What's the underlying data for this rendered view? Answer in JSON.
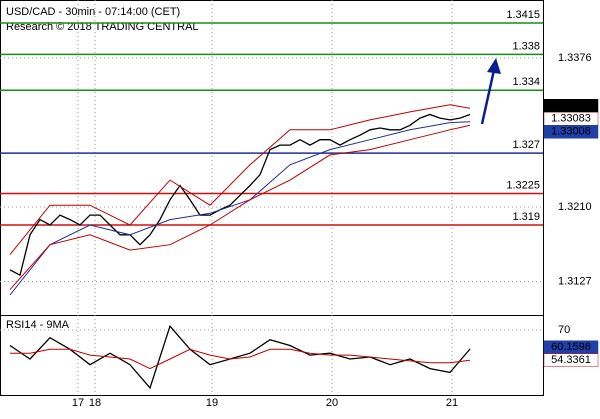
{
  "chart_data": [
    {
      "type": "line",
      "title": "USD/CAD - 30min - 07:14:00 (CET)",
      "subtitle": "Research © 2018 TRADING CENTRAL",
      "x": [
        0,
        1,
        2,
        3,
        4,
        5,
        6,
        7,
        8,
        9,
        10,
        11,
        12,
        13,
        14,
        15,
        16,
        17,
        18,
        19,
        20,
        21,
        22,
        23,
        24,
        25,
        26,
        27,
        28,
        29,
        30,
        31,
        32,
        33,
        34,
        35,
        36,
        37,
        38,
        39,
        40,
        41,
        42,
        43,
        44,
        45,
        46
      ],
      "xlim": [
        -1,
        53.3
      ],
      "ylim": [
        1.30897,
        1.34406
      ],
      "yticks": [
        1.3127,
        {
          "value": 1.321,
          "label": "1.3210"
        },
        1.3376
      ],
      "grid": true,
      "series": [
        {
          "color": "#000000",
          "values": [
            1.314,
            1.3134,
            1.3179,
            1.3196,
            1.319,
            1.3201,
            1.3196,
            1.319,
            1.3201,
            1.3201,
            1.319,
            1.3179,
            1.3179,
            1.3168,
            1.3179,
            1.3196,
            1.3218,
            1.3234,
            1.3218,
            1.3201,
            1.3201,
            1.3207,
            1.3212,
            1.3223,
            1.3234,
            1.3246,
            1.3274,
            1.3279,
            1.3279,
            1.3285,
            1.3279,
            1.3285,
            1.3285,
            1.3279,
            1.3285,
            1.329,
            1.3296,
            1.3298,
            1.3296,
            1.3296,
            1.3301,
            1.3309,
            1.3313,
            1.3309,
            1.3307,
            1.3309,
            1.3313
          ]
        },
        {
          "color": "#1f2f8f",
          "x": [
            0,
            4,
            8,
            12,
            16,
            20,
            24,
            28,
            32,
            36,
            40,
            44,
            46
          ],
          "values": [
            1.3112,
            1.3168,
            1.319,
            1.3179,
            1.3196,
            1.3203,
            1.3218,
            1.3257,
            1.3274,
            1.3285,
            1.3296,
            1.3304,
            1.3305
          ]
        },
        {
          "color": "#c00000",
          "x": [
            0,
            4,
            8,
            12,
            16,
            20,
            24,
            28,
            32,
            36,
            40,
            44,
            46
          ],
          "values": [
            1.3157,
            1.3212,
            1.3212,
            1.319,
            1.324,
            1.3212,
            1.3257,
            1.3296,
            1.3296,
            1.3307,
            1.3316,
            1.3324,
            1.332
          ]
        },
        {
          "color": "#c00000",
          "x": [
            0,
            4,
            8,
            12,
            16,
            20,
            24,
            28,
            32,
            36,
            40,
            44,
            46
          ],
          "values": [
            1.3118,
            1.3168,
            1.3179,
            1.3162,
            1.3168,
            1.319,
            1.3218,
            1.324,
            1.3268,
            1.3274,
            1.3285,
            1.3296,
            1.3301
          ]
        }
      ],
      "levels": [
        {
          "value": 1.3415,
          "color": "#1a8c1a"
        },
        {
          "value": 1.338,
          "color": "#1a8c1a"
        },
        {
          "value": 1.334,
          "color": "#1a8c1a"
        },
        {
          "value": 1.327,
          "color": "#1f2f9f"
        },
        {
          "value": 1.3225,
          "color": "#d01010"
        },
        {
          "value": 1.319,
          "color": "#d01010"
        }
      ],
      "tags": [
        {
          "value": 1.33174,
          "color": "#000000",
          "text_color": "#ffffff"
        },
        {
          "value": 1.33083,
          "color": "#ffffff",
          "text_color": "#d01010"
        },
        {
          "value": 1.33008,
          "color": "#1f3fa9",
          "text_color": "#ffffff"
        }
      ]
    },
    {
      "type": "line",
      "title": "RSI14 - 9MA",
      "x": [
        0,
        2,
        4,
        6,
        8,
        10,
        12,
        14,
        16,
        18,
        20,
        22,
        24,
        26,
        28,
        30,
        32,
        34,
        36,
        38,
        40,
        42,
        44,
        46
      ],
      "xlim": [
        -1,
        53.3
      ],
      "ylim": [
        36.3,
        77.8
      ],
      "yticks": [
        70
      ],
      "xticks": [
        {
          "value": 6.8,
          "label": "17"
        },
        {
          "value": 8.5,
          "label": "18"
        },
        {
          "value": 20.2,
          "label": "19"
        },
        {
          "value": 32.2,
          "label": "20"
        },
        {
          "value": 44.2,
          "label": "21"
        }
      ],
      "series": [
        {
          "color": "#000000",
          "values": [
            62,
            55,
            66,
            60,
            52,
            58,
            52,
            40,
            72,
            60,
            52,
            55,
            58,
            65,
            62,
            57,
            58,
            55,
            56,
            52,
            55,
            50,
            48,
            60.16
          ]
        },
        {
          "color": "#c00000",
          "values": [
            58,
            58,
            60,
            60,
            57,
            56,
            55,
            50,
            55,
            60,
            57,
            55,
            56,
            60,
            60,
            58,
            57,
            57,
            56,
            55,
            54,
            53,
            53,
            54.34
          ]
        }
      ],
      "tags": [
        {
          "value": 60.1598,
          "color": "#1f3fa9",
          "text_color": "#ffffff"
        },
        {
          "value": 54.3361,
          "color": "#ffffff",
          "text_color": "#d01010"
        }
      ]
    }
  ]
}
